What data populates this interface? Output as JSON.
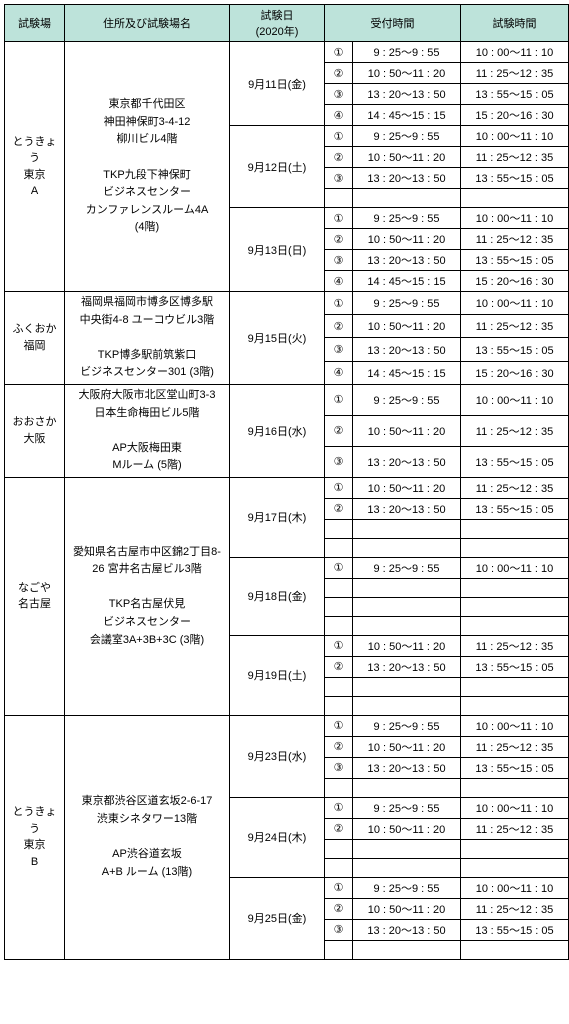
{
  "headers": {
    "site": "試験場",
    "address": "住所及び試験場名",
    "date_line1": "試験日",
    "date_line2": "(2020年)",
    "reception": "受付時間",
    "exam": "試験時間"
  },
  "circled": {
    "1": "①",
    "2": "②",
    "3": "③",
    "4": "④"
  },
  "sites": [
    {
      "name": "とうきょう\n東京\nA",
      "addr": "東京都千代田区\n神田神保町3-4-12\n柳川ビル4階\n\nTKP九段下神保町\nビジネスセンター\nカンファレンスルーム4A\n(4階)",
      "days": [
        {
          "date": "9月11日(金)",
          "slots": [
            {
              "n": "1",
              "r": "9 : 25～9 : 55",
              "e": "10 : 00～11 : 10"
            },
            {
              "n": "2",
              "r": "10 : 50～11 : 20",
              "e": "11 : 25～12 : 35"
            },
            {
              "n": "3",
              "r": "13 : 20～13 : 50",
              "e": "13 : 55～15 : 05"
            },
            {
              "n": "4",
              "r": "14 : 45～15 : 15",
              "e": "15 : 20～16 : 30"
            }
          ]
        },
        {
          "date": "9月12日(土)",
          "slots": [
            {
              "n": "1",
              "r": "9 : 25～9 : 55",
              "e": "10 : 00～11 : 10"
            },
            {
              "n": "2",
              "r": "10 : 50～11 : 20",
              "e": "11 : 25～12 : 35"
            },
            {
              "n": "3",
              "r": "13 : 20～13 : 50",
              "e": "13 : 55～15 : 05"
            }
          ],
          "empties": 1
        },
        {
          "date": "9月13日(日)",
          "slots": [
            {
              "n": "1",
              "r": "9 : 25～9 : 55",
              "e": "10 : 00～11 : 10"
            },
            {
              "n": "2",
              "r": "10 : 50～11 : 20",
              "e": "11 : 25～12 : 35"
            },
            {
              "n": "3",
              "r": "13 : 20～13 : 50",
              "e": "13 : 55～15 : 05"
            },
            {
              "n": "4",
              "r": "14 : 45～15 : 15",
              "e": "15 : 20～16 : 30"
            }
          ]
        }
      ]
    },
    {
      "name": "ふくおか\n福岡",
      "addr": "福岡県福岡市博多区博多駅\n中央街4-8 ユーコウビル3階\n\nTKP博多駅前筑紫口\nビジネスセンター301 (3階)",
      "days": [
        {
          "date": "9月15日(火)",
          "slots": [
            {
              "n": "1",
              "r": "9 : 25～9 : 55",
              "e": "10 : 00～11 : 10"
            },
            {
              "n": "2",
              "r": "10 : 50～11 : 20",
              "e": "11 : 25～12 : 35"
            },
            {
              "n": "3",
              "r": "13 : 20～13 : 50",
              "e": "13 : 55～15 : 05"
            },
            {
              "n": "4",
              "r": "14 : 45～15 : 15",
              "e": "15 : 20～16 : 30"
            }
          ]
        }
      ]
    },
    {
      "name": "おおさか\n大阪",
      "addr": "大阪府大阪市北区堂山町3-3\n日本生命梅田ビル5階\n\nAP大阪梅田東\nMルーム (5階)",
      "days": [
        {
          "date": "9月16日(水)",
          "slots": [
            {
              "n": "1",
              "r": "9 : 25～9 : 55",
              "e": "10 : 00～11 : 10"
            },
            {
              "n": "2",
              "r": "10 : 50～11 : 20",
              "e": "11 : 25～12 : 35"
            },
            {
              "n": "3",
              "r": "13 : 20～13 : 50",
              "e": "13 : 55～15 : 05"
            }
          ]
        }
      ]
    },
    {
      "name": "なごや\n名古屋",
      "addr": "愛知県名古屋市中区錦2丁目8-\n26 宮井名古屋ビル3階\n\nTKP名古屋伏見\nビジネスセンター\n会議室3A+3B+3C (3階)",
      "days": [
        {
          "date": "9月17日(木)",
          "slots": [
            {
              "n": "1",
              "r": "10 : 50～11 : 20",
              "e": "11 : 25～12 : 35"
            },
            {
              "n": "2",
              "r": "13 : 20～13 : 50",
              "e": "13 : 55～15 : 05"
            }
          ],
          "empties": 2
        },
        {
          "date": "9月18日(金)",
          "slots": [
            {
              "n": "1",
              "r": "9 : 25～9 : 55",
              "e": "10 : 00～11 : 10"
            }
          ],
          "empties": 3
        },
        {
          "date": "9月19日(土)",
          "slots": [
            {
              "n": "1",
              "r": "10 : 50～11 : 20",
              "e": "11 : 25～12 : 35"
            },
            {
              "n": "2",
              "r": "13 : 20～13 : 50",
              "e": "13 : 55～15 : 05"
            }
          ],
          "empties": 2
        }
      ]
    },
    {
      "name": "とうきょう\n東京\nB",
      "addr": "東京都渋谷区道玄坂2-6-17\n渋東シネタワー13階\n\nAP渋谷道玄坂\nA+B ルーム (13階)",
      "days": [
        {
          "date": "9月23日(水)",
          "slots": [
            {
              "n": "1",
              "r": "9 : 25～9 : 55",
              "e": "10 : 00～11 : 10"
            },
            {
              "n": "2",
              "r": "10 : 50～11 : 20",
              "e": "11 : 25～12 : 35"
            },
            {
              "n": "3",
              "r": "13 : 20～13 : 50",
              "e": "13 : 55～15 : 05"
            }
          ],
          "empties": 1
        },
        {
          "date": "9月24日(木)",
          "slots": [
            {
              "n": "1",
              "r": "9 : 25～9 : 55",
              "e": "10 : 00～11 : 10"
            },
            {
              "n": "2",
              "r": "10 : 50～11 : 20",
              "e": "11 : 25～12 : 35"
            }
          ],
          "empties": 2
        },
        {
          "date": "9月25日(金)",
          "slots": [
            {
              "n": "1",
              "r": "9 : 25～9 : 55",
              "e": "10 : 00～11 : 10"
            },
            {
              "n": "2",
              "r": "10 : 50～11 : 20",
              "e": "11 : 25～12 : 35"
            },
            {
              "n": "3",
              "r": "13 : 20～13 : 50",
              "e": "13 : 55～15 : 05"
            }
          ],
          "empties": 1
        }
      ]
    }
  ]
}
